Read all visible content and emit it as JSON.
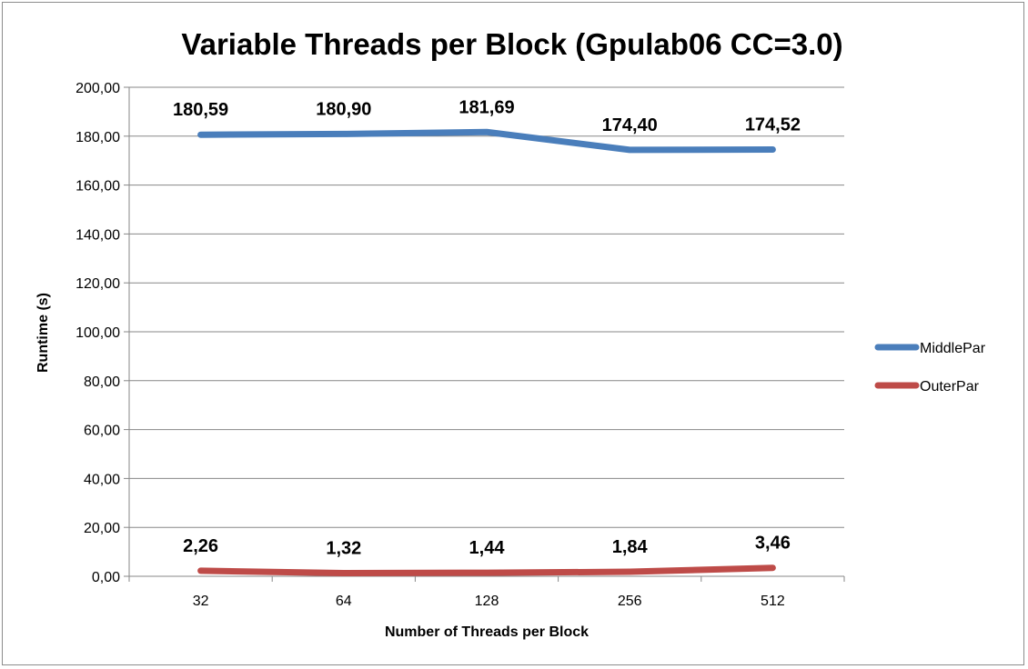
{
  "chart_data": {
    "type": "line",
    "title": "Variable Threads per Block (Gpulab06 CC=3.0)",
    "xlabel": "Number of Threads per Block",
    "ylabel": "Runtime (s)",
    "categories": [
      "32",
      "64",
      "128",
      "256",
      "512"
    ],
    "ylim": [
      0,
      200
    ],
    "yticks": [
      0,
      20,
      40,
      60,
      80,
      100,
      120,
      140,
      160,
      180,
      200
    ],
    "ytick_labels": [
      "0,00",
      "20,00",
      "40,00",
      "60,00",
      "80,00",
      "100,00",
      "120,00",
      "140,00",
      "160,00",
      "180,00",
      "200,00"
    ],
    "grid": true,
    "legend_position": "right",
    "series": [
      {
        "name": "MiddlePar",
        "color": "#4a7ebb",
        "values": [
          180.59,
          180.9,
          181.69,
          174.4,
          174.52
        ],
        "labels": [
          "180,59",
          "180,90",
          "181,69",
          "174,40",
          "174,52"
        ]
      },
      {
        "name": "OuterPar",
        "color": "#be4b48",
        "values": [
          2.26,
          1.32,
          1.44,
          1.84,
          3.46
        ],
        "labels": [
          "2,26",
          "1,32",
          "1,44",
          "1,84",
          "3,46"
        ]
      }
    ]
  }
}
